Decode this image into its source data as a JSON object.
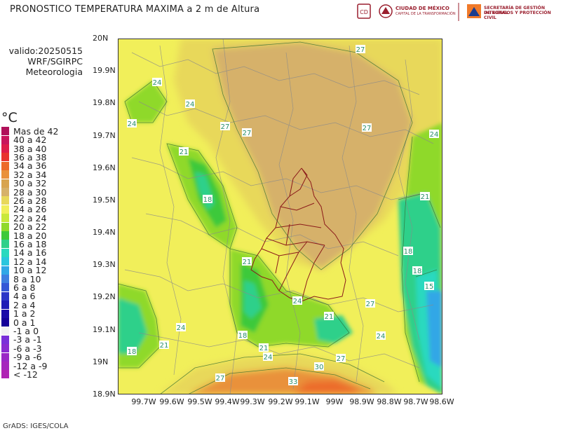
{
  "header": {
    "title": "PRONOSTICO TEMPERATURA MAXIMA a 2 m de Altura",
    "logo_cdmx_line1": "CIUDAD DE MÉXICO",
    "logo_cdmx_line2": "CAPITAL DE LA TRANSFORMACIÓN",
    "logo_sgirpc_line1": "SECRETARÍA DE GESTIÓN INTEGRAL",
    "logo_sgirpc_line2": "DE RIESGOS Y PROTECCIÓN CIVIL"
  },
  "meta": {
    "valid": "valido:20250515",
    "model": "WRF/SGIRPC",
    "dept": "Meteorologia"
  },
  "legend": {
    "unit": "°C",
    "items": [
      {
        "label": "Mas de 42",
        "color": "#b0115a"
      },
      {
        "label": "40 a 42",
        "color": "#c8155c"
      },
      {
        "label": "38 a 40",
        "color": "#dd1c4a"
      },
      {
        "label": "36 a 38",
        "color": "#e8322e"
      },
      {
        "label": "34 a 36",
        "color": "#ec6a2a"
      },
      {
        "label": "32 a 34",
        "color": "#e9913a"
      },
      {
        "label": "30 a 32",
        "color": "#d8a44f"
      },
      {
        "label": "28 a 30",
        "color": "#d6b16a"
      },
      {
        "label": "26 a 28",
        "color": "#e8d85a"
      },
      {
        "label": "24 a 26",
        "color": "#f1ef5a"
      },
      {
        "label": "22 a 24",
        "color": "#c9e83a"
      },
      {
        "label": "20 a 22",
        "color": "#8fd92c"
      },
      {
        "label": "18 a 20",
        "color": "#3ec93a"
      },
      {
        "label": "16 a 18",
        "color": "#2ed08a"
      },
      {
        "label": "14 a 16",
        "color": "#29d9bf"
      },
      {
        "label": "12 a 14",
        "color": "#2ac6de"
      },
      {
        "label": "10 a 12",
        "color": "#31a7e6"
      },
      {
        "label": "8 a 10",
        "color": "#3f7fe0"
      },
      {
        "label": "6 a 8",
        "color": "#3557d6"
      },
      {
        "label": "4 a 6",
        "color": "#2b35c7"
      },
      {
        "label": "2 a 4",
        "color": "#1f1cb6"
      },
      {
        "label": "1 a 2",
        "color": "#1a0aa8"
      },
      {
        "label": "0 a 1",
        "color": "#140099"
      },
      {
        "label": "-1 a 0",
        "color": "#f2f2f2"
      },
      {
        "label": "-3 a -1",
        "color": "#7a2fd8"
      },
      {
        "label": "-6 a -3",
        "color": "#8a2bd0"
      },
      {
        "label": "-9 a -6",
        "color": "#9a28c6"
      },
      {
        "label": "-12 a -9",
        "color": "#a526bd"
      },
      {
        "label": "< -12",
        "color": "#b024b4"
      }
    ]
  },
  "axes": {
    "y_labels": [
      "20N",
      "19.9N",
      "19.8N",
      "19.7N",
      "19.6N",
      "19.5N",
      "19.4N",
      "19.3N",
      "19.2N",
      "19.1N",
      "19N",
      "18.9N"
    ],
    "x_labels": [
      "99.7W",
      "99.6W",
      "99.5W",
      "99.4W",
      "99.3W",
      "99.2W",
      "99.1W",
      "99W",
      "98.9W",
      "98.8W",
      "98.7W",
      "98.6W"
    ]
  },
  "contour_labels": [
    "27",
    "24",
    "24",
    "24",
    "27",
    "27",
    "27",
    "24",
    "21",
    "18",
    "21",
    "18",
    "18",
    "15",
    "21",
    "24",
    "27",
    "24",
    "21",
    "21",
    "18",
    "18",
    "21",
    "24",
    "24",
    "30",
    "27",
    "27",
    "33"
  ],
  "footer": "GrADS: IGES/COLA"
}
